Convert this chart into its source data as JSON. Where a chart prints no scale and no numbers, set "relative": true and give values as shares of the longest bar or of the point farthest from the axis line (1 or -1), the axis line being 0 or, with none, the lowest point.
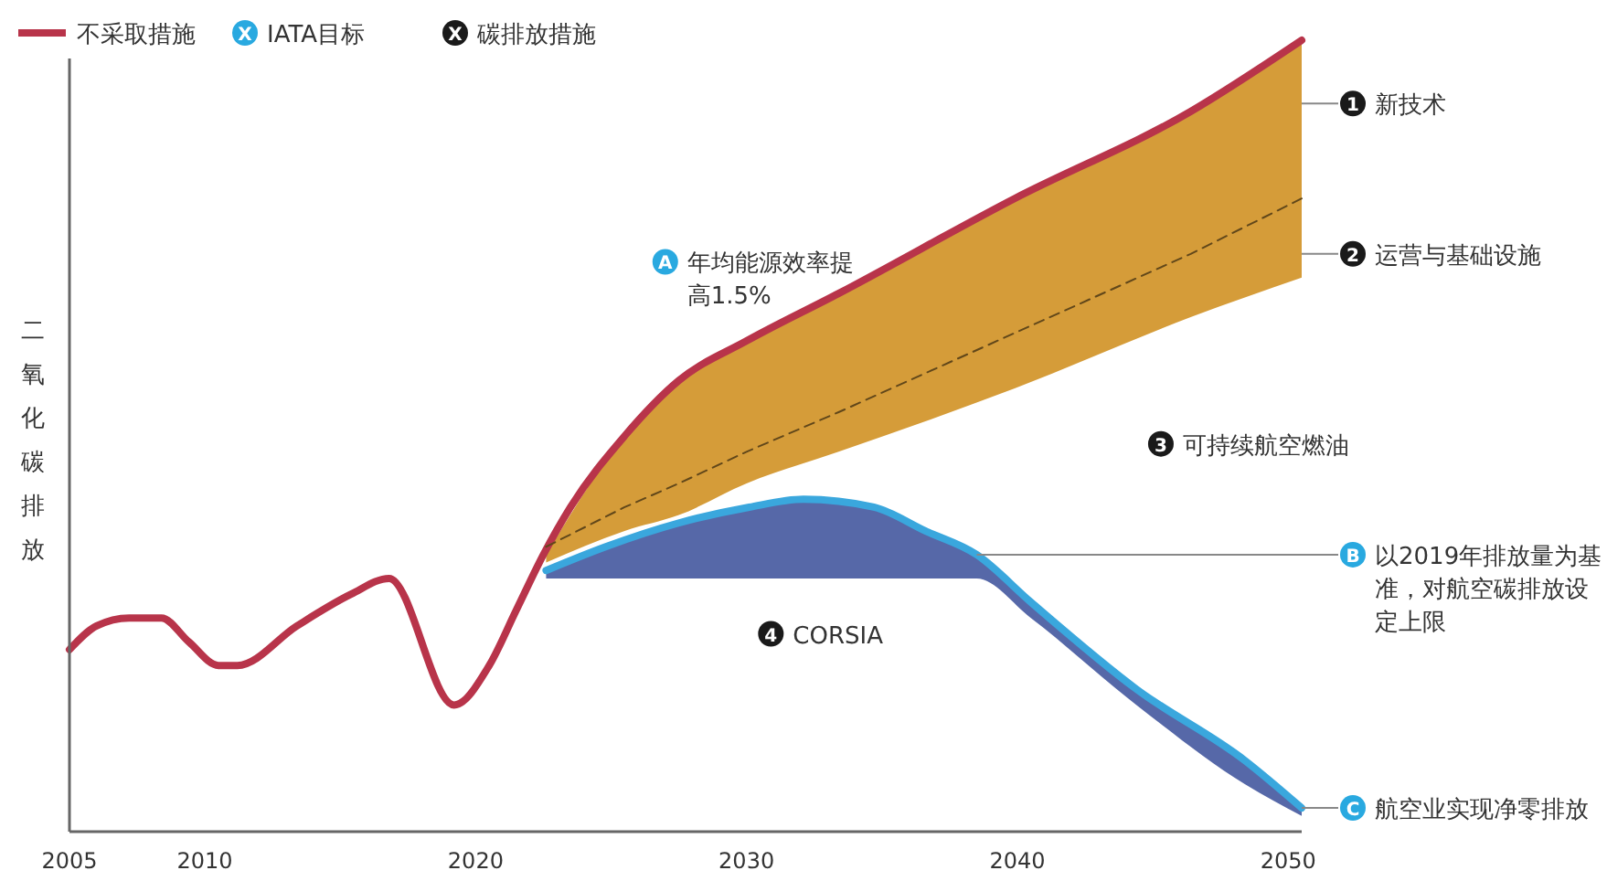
{
  "chart_data": {
    "type": "line",
    "relative": true,
    "ylabel": "二氧化碳排放",
    "xlim": [
      2005,
      2050.5
    ],
    "xticks": [
      2005,
      2010,
      2020,
      2030,
      2040,
      2050
    ],
    "legend": "top left",
    "series": [
      {
        "color": "#61471a",
        "line_style": "dashed",
        "x": [
          2022.6,
          2025.5,
          2027.5,
          2030,
          2033.4,
          2039.9,
          2046.4,
          2050.5
        ],
        "values": [
          0.36,
          0.41,
          0.44,
          0.48,
          0.53,
          0.63,
          0.73,
          0.8
        ],
        "lower": [
          0.34,
          0.38,
          0.4,
          0.44,
          0.48,
          0.56,
          0.65,
          0.7
        ],
        "upper": [
          0.35,
          0.5,
          0.57,
          0.62,
          0.68,
          0.8,
          0.91,
          1
        ]
      },
      {
        "color": "#3aa7dd",
        "x": [
          2022.6,
          2024.8,
          2027.5,
          2030.1,
          2032.1,
          2034.7,
          2036.6,
          2038.5,
          2040.5,
          2044.4,
          2048.4,
          2050.5
        ],
        "values": [
          0.33,
          0.36,
          0.39,
          0.41,
          0.42,
          0.41,
          0.38,
          0.35,
          0.29,
          0.18,
          0.09,
          0.03
        ],
        "lower": [
          0.32,
          0.32,
          0.32,
          0.32,
          0.32,
          0.32,
          0.32,
          0.32,
          0.27,
          0.16,
          0.06,
          0.02
        ],
        "upper": [
          0.33,
          0.36,
          0.39,
          0.41,
          0.42,
          0.41,
          0.38,
          0.35,
          0.29,
          0.18,
          0.09,
          0.03
        ]
      },
      {
        "name": "不采取措施",
        "color": "#b8344a",
        "x": [
          2005,
          2006,
          2007.2,
          2008.4,
          2009.4,
          2010.5,
          2011.2,
          2013.4,
          2015.4,
          2016.8,
          2019.2,
          2020.5,
          2021.5,
          2022.5,
          2023.5,
          2025.5,
          2027.5,
          2030,
          2033.4,
          2039.9,
          2046.4,
          2050.5
        ],
        "values": [
          0.23,
          0.26,
          0.27,
          0.27,
          0.24,
          0.21,
          0.21,
          0.26,
          0.3,
          0.32,
          0.16,
          0.21,
          0.28,
          0.35,
          0.41,
          0.5,
          0.57,
          0.62,
          0.68,
          0.8,
          0.91,
          1
        ]
      }
    ],
    "annotations": [
      "X IATA目标",
      "X 碳排放措施",
      {
        "text": "A 年均能源效率提高1.5%",
        "x": 2027,
        "y": 0.72
      },
      {
        "text": "1 新技术",
        "x": 2050.5,
        "y": 0.92
      },
      {
        "text": "2 运营与基础设施",
        "x": 2050.5,
        "y": 0.73
      },
      {
        "text": "3 可持续航空燃油",
        "x": 2045.3,
        "y": 0.49
      },
      {
        "text": "B 以2019年排放量为基准，对航空碳排放设定上限",
        "x": 2038.5,
        "y": 0.35
      },
      {
        "text": "4 CORSIA",
        "x": 2030.9,
        "y": 0.25
      },
      {
        "text": "C 航空业实现净零排放",
        "x": 2050.5,
        "y": 0.03
      }
    ]
  }
}
